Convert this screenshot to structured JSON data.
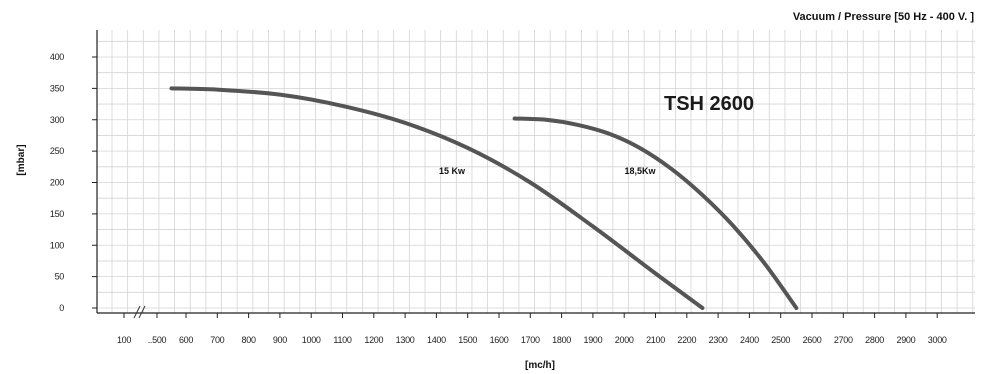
{
  "chart_data": {
    "type": "line",
    "title": "Vacuum / Pressure [50 Hz - 400 V. ]",
    "model": "TSH 2600",
    "xlabel": "[mc/h]",
    "ylabel": "[mbar]",
    "x_ticks": [
      "100",
      "..500",
      "600",
      "700",
      "800",
      "900",
      "1000",
      "1100",
      "1200",
      "1300",
      "1400",
      "1500",
      "1600",
      "1700",
      "1800",
      "1900",
      "2000",
      "2100",
      "2200",
      "2300",
      "2400",
      "2500",
      "2600",
      "2700",
      "2800",
      "2900",
      "3000"
    ],
    "y_ticks": [
      "0",
      "50",
      "100",
      "150",
      "200",
      "250",
      "300",
      "350",
      "400"
    ],
    "ylim": [
      0,
      400
    ],
    "xlim": [
      100,
      3000
    ],
    "axis_break": "between 100 and 500",
    "grid": true,
    "series": [
      {
        "name": "15 Kw",
        "color": "#555555",
        "x": [
          550,
          700,
          900,
          1100,
          1300,
          1500,
          1700,
          1900,
          2100,
          2250
        ],
        "y": [
          350,
          348,
          340,
          322,
          295,
          255,
          200,
          130,
          55,
          0
        ]
      },
      {
        "name": "18,5Kw",
        "color": "#555555",
        "x": [
          1650,
          1750,
          1850,
          1950,
          2050,
          2150,
          2250,
          2350,
          2450,
          2550
        ],
        "y": [
          302,
          300,
          292,
          278,
          255,
          222,
          180,
          130,
          70,
          0
        ]
      }
    ]
  }
}
